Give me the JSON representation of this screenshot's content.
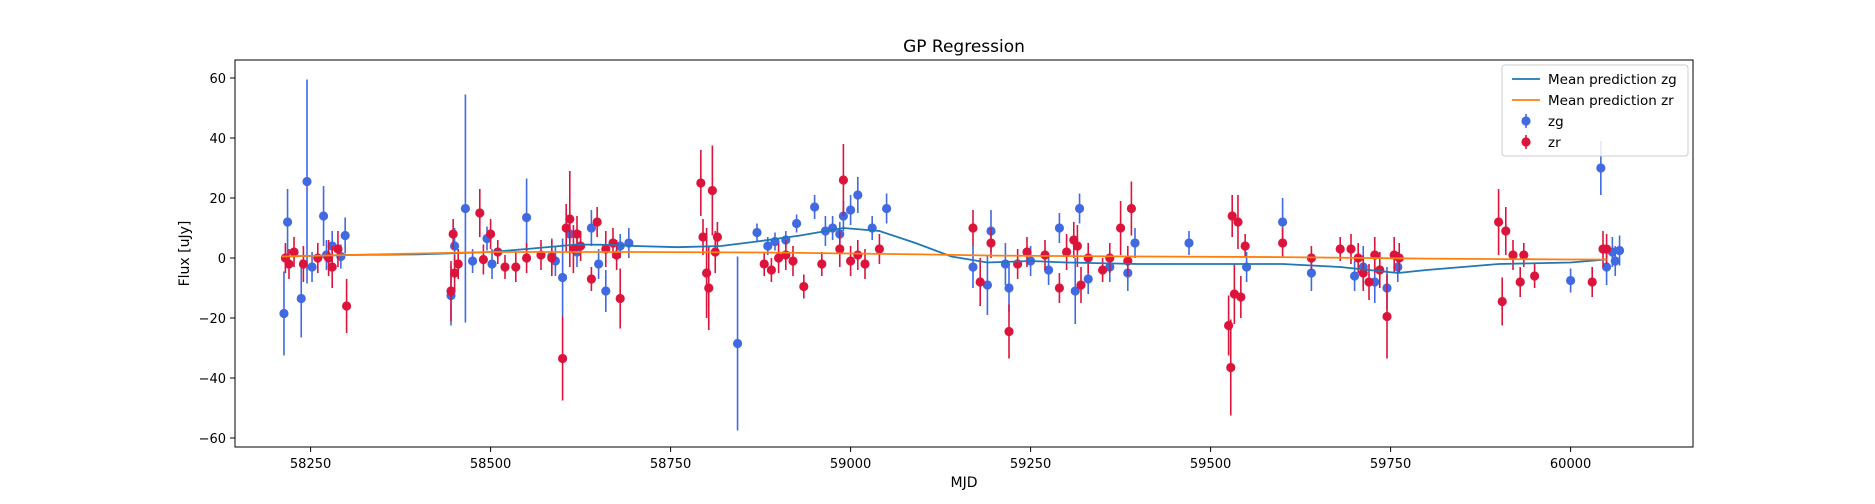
{
  "chart_data": {
    "type": "scatter",
    "title": "GP Regression",
    "xlabel": "MJD",
    "ylabel": "Flux [uJy]",
    "xlim": [
      58145,
      60170
    ],
    "ylim": [
      -63,
      66
    ],
    "x_ticks": [
      58250,
      58500,
      58750,
      59000,
      59250,
      59500,
      59750,
      60000
    ],
    "y_ticks": [
      -60,
      -40,
      -20,
      0,
      20,
      40,
      60
    ],
    "grid": false,
    "legend_position": "top-right",
    "legend": [
      {
        "label": "Mean prediction zg",
        "kind": "line",
        "color": "#1f77b4"
      },
      {
        "label": "Mean prediction zr",
        "kind": "line",
        "color": "#ff7f0e"
      },
      {
        "label": "zg",
        "kind": "errorbar",
        "color": "#4169e1"
      },
      {
        "label": "zr",
        "kind": "errorbar",
        "color": "#dc143c"
      }
    ],
    "lines": [
      {
        "name": "Mean prediction zg",
        "color": "#1f77b4",
        "points": [
          [
            58210,
            0.5
          ],
          [
            58300,
            1.0
          ],
          [
            58400,
            1.2
          ],
          [
            58500,
            2.0
          ],
          [
            58550,
            3.0
          ],
          [
            58620,
            4.5
          ],
          [
            58660,
            4.4
          ],
          [
            58700,
            4.0
          ],
          [
            58760,
            3.6
          ],
          [
            58820,
            4.0
          ],
          [
            58870,
            5.5
          ],
          [
            58930,
            7.5
          ],
          [
            58990,
            10.0
          ],
          [
            59040,
            9.0
          ],
          [
            59090,
            5.0
          ],
          [
            59140,
            0.5
          ],
          [
            59190,
            -1.5
          ],
          [
            59250,
            -1.0
          ],
          [
            59300,
            -1.5
          ],
          [
            59400,
            -2.0
          ],
          [
            59500,
            -2.0
          ],
          [
            59600,
            -2.0
          ],
          [
            59680,
            -3.0
          ],
          [
            59760,
            -5.0
          ],
          [
            59800,
            -4.0
          ],
          [
            59900,
            -2.0
          ],
          [
            60000,
            -1.5
          ],
          [
            60050,
            -0.5
          ]
        ]
      },
      {
        "name": "Mean prediction zr",
        "color": "#ff7f0e",
        "points": [
          [
            58210,
            0.5
          ],
          [
            58400,
            1.5
          ],
          [
            58500,
            2.0
          ],
          [
            58700,
            2.0
          ],
          [
            58900,
            1.8
          ],
          [
            59000,
            1.5
          ],
          [
            59100,
            1.2
          ],
          [
            59200,
            0.8
          ],
          [
            59400,
            0.5
          ],
          [
            59600,
            0.3
          ],
          [
            59800,
            -0.2
          ],
          [
            60000,
            -0.5
          ],
          [
            60050,
            -0.5
          ]
        ]
      }
    ],
    "series": [
      {
        "name": "zg",
        "color": "#4169e1",
        "points": [
          [
            58213,
            -18.5,
            14
          ],
          [
            58218,
            12,
            11
          ],
          [
            58237,
            -13.5,
            13
          ],
          [
            58245,
            25.5,
            34
          ],
          [
            58252,
            -3,
            5
          ],
          [
            58268,
            14,
            10
          ],
          [
            58272,
            1,
            5
          ],
          [
            58280,
            4,
            5
          ],
          [
            58298,
            7.5,
            6
          ],
          [
            58292,
            0.5,
            4
          ],
          [
            58445,
            -12.5,
            10
          ],
          [
            58450,
            4,
            6
          ],
          [
            58465,
            16.5,
            38
          ],
          [
            58475,
            -1,
            4
          ],
          [
            58495,
            6.5,
            4
          ],
          [
            58502,
            -2,
            5
          ],
          [
            58550,
            13.5,
            13
          ],
          [
            58585,
            0.5,
            6
          ],
          [
            58590,
            -1,
            5
          ],
          [
            58600,
            -6.5,
            13
          ],
          [
            58610,
            8,
            5
          ],
          [
            58620,
            2,
            5
          ],
          [
            58640,
            10,
            6
          ],
          [
            58650,
            -2,
            5
          ],
          [
            58660,
            -11,
            7
          ],
          [
            58680,
            4,
            4
          ],
          [
            58692,
            5,
            5
          ],
          [
            58843,
            -28.5,
            29
          ],
          [
            58870,
            8.5,
            3
          ],
          [
            58885,
            4,
            3
          ],
          [
            58895,
            5.5,
            3
          ],
          [
            58910,
            6,
            3
          ],
          [
            58925,
            11.5,
            3
          ],
          [
            58950,
            17,
            4
          ],
          [
            58965,
            9,
            5
          ],
          [
            58975,
            10,
            4
          ],
          [
            58985,
            8,
            4
          ],
          [
            58990,
            14,
            5
          ],
          [
            59000,
            16,
            5
          ],
          [
            59010,
            21,
            6
          ],
          [
            59030,
            10,
            4
          ],
          [
            59050,
            16.5,
            5
          ],
          [
            59170,
            -3,
            7
          ],
          [
            59190,
            -9,
            10
          ],
          [
            59195,
            9,
            7
          ],
          [
            59215,
            -2,
            7
          ],
          [
            59220,
            -10,
            8
          ],
          [
            59250,
            -1,
            5
          ],
          [
            59275,
            -4,
            5
          ],
          [
            59290,
            10,
            5
          ],
          [
            59312,
            -11,
            11
          ],
          [
            59318,
            16.5,
            5
          ],
          [
            59330,
            -7,
            5
          ],
          [
            59360,
            -3,
            5
          ],
          [
            59385,
            -5,
            6
          ],
          [
            59395,
            5,
            5
          ],
          [
            59470,
            5,
            4
          ],
          [
            59550,
            -3,
            5
          ],
          [
            59600,
            12,
            8
          ],
          [
            59640,
            -5,
            6
          ],
          [
            59700,
            -6,
            5
          ],
          [
            59712,
            -3,
            7
          ],
          [
            59728,
            -8,
            7
          ],
          [
            59745,
            -10,
            7
          ],
          [
            59760,
            -3,
            5
          ],
          [
            60000,
            -7.5,
            4
          ],
          [
            60042,
            30,
            9
          ],
          [
            60050,
            -3,
            6
          ],
          [
            60058,
            2,
            5
          ],
          [
            60062,
            -1,
            5
          ],
          [
            60068,
            2.5,
            5
          ]
        ]
      },
      {
        "name": "zr",
        "color": "#dc143c",
        "points": [
          [
            58215,
            0,
            5
          ],
          [
            58220,
            -2,
            5
          ],
          [
            58227,
            2,
            5
          ],
          [
            58240,
            -2,
            6
          ],
          [
            58260,
            0,
            5
          ],
          [
            58275,
            0,
            6
          ],
          [
            58280,
            -3,
            7
          ],
          [
            58288,
            3,
            6
          ],
          [
            58300,
            -16,
            9
          ],
          [
            58445,
            -11,
            10
          ],
          [
            58448,
            8,
            5
          ],
          [
            58450,
            -5,
            6
          ],
          [
            58455,
            -2,
            5
          ],
          [
            58485,
            15,
            8
          ],
          [
            58490,
            -0.5,
            5
          ],
          [
            58500,
            8,
            5
          ],
          [
            58510,
            2,
            4
          ],
          [
            58520,
            -3,
            4
          ],
          [
            58535,
            -3,
            5
          ],
          [
            58550,
            0,
            5
          ],
          [
            58570,
            1,
            5
          ],
          [
            58585,
            0,
            6
          ],
          [
            58600,
            -33.5,
            14
          ],
          [
            58605,
            10,
            8
          ],
          [
            58610,
            13,
            16
          ],
          [
            58615,
            3,
            8
          ],
          [
            58620,
            8,
            6
          ],
          [
            58625,
            4,
            5
          ],
          [
            58640,
            -7,
            4
          ],
          [
            58648,
            12,
            5
          ],
          [
            58660,
            3,
            6
          ],
          [
            58670,
            5,
            5
          ],
          [
            58675,
            1,
            5
          ],
          [
            58680,
            -13.5,
            10
          ],
          [
            58792,
            25,
            11
          ],
          [
            58795,
            7,
            6
          ],
          [
            58800,
            -5,
            15
          ],
          [
            58803,
            -10,
            14
          ],
          [
            58808,
            22.5,
            15
          ],
          [
            58812,
            2,
            7
          ],
          [
            58815,
            7,
            5
          ],
          [
            58880,
            -2,
            4
          ],
          [
            58890,
            -4,
            4
          ],
          [
            58900,
            0,
            5
          ],
          [
            58910,
            1,
            5
          ],
          [
            58920,
            -1,
            5
          ],
          [
            58935,
            -9.5,
            4
          ],
          [
            58960,
            -2,
            4
          ],
          [
            58985,
            3,
            6
          ],
          [
            58990,
            26,
            12
          ],
          [
            59000,
            -1,
            5
          ],
          [
            59010,
            1,
            5
          ],
          [
            59020,
            -2,
            5
          ],
          [
            59040,
            3,
            5
          ],
          [
            59170,
            10,
            6
          ],
          [
            59180,
            -8,
            8
          ],
          [
            59195,
            5,
            5
          ],
          [
            59220,
            -24.5,
            9
          ],
          [
            59232,
            -2,
            5
          ],
          [
            59245,
            2,
            5
          ],
          [
            59270,
            1,
            5
          ],
          [
            59290,
            -10,
            5
          ],
          [
            59300,
            2,
            6
          ],
          [
            59310,
            6,
            6
          ],
          [
            59315,
            4,
            7
          ],
          [
            59320,
            -9,
            6
          ],
          [
            59330,
            0,
            5
          ],
          [
            59350,
            -4,
            4
          ],
          [
            59360,
            0,
            5
          ],
          [
            59375,
            10,
            9
          ],
          [
            59385,
            -1,
            5
          ],
          [
            59390,
            16.5,
            9
          ],
          [
            59525,
            -22.5,
            10
          ],
          [
            59528,
            -36.5,
            16
          ],
          [
            59530,
            14,
            7
          ],
          [
            59533,
            -12,
            10
          ],
          [
            59538,
            12,
            9
          ],
          [
            59542,
            -13,
            7
          ],
          [
            59548,
            4,
            4
          ],
          [
            59600,
            5,
            5
          ],
          [
            59640,
            0,
            4
          ],
          [
            59680,
            3,
            4
          ],
          [
            59695,
            3,
            5
          ],
          [
            59705,
            0,
            5
          ],
          [
            59712,
            -5,
            6
          ],
          [
            59720,
            -8,
            6
          ],
          [
            59728,
            1,
            6
          ],
          [
            59735,
            -4,
            6
          ],
          [
            59745,
            -19.5,
            14
          ],
          [
            59755,
            1,
            6
          ],
          [
            59762,
            0,
            5
          ],
          [
            59900,
            12,
            11
          ],
          [
            59905,
            -14.5,
            8
          ],
          [
            59910,
            9,
            8
          ],
          [
            59920,
            1,
            5
          ],
          [
            59930,
            -8,
            5
          ],
          [
            59935,
            1,
            4
          ],
          [
            59950,
            -6,
            4
          ],
          [
            60030,
            -8,
            5
          ],
          [
            60045,
            3,
            6
          ],
          [
            60050,
            3,
            5
          ]
        ]
      }
    ]
  }
}
